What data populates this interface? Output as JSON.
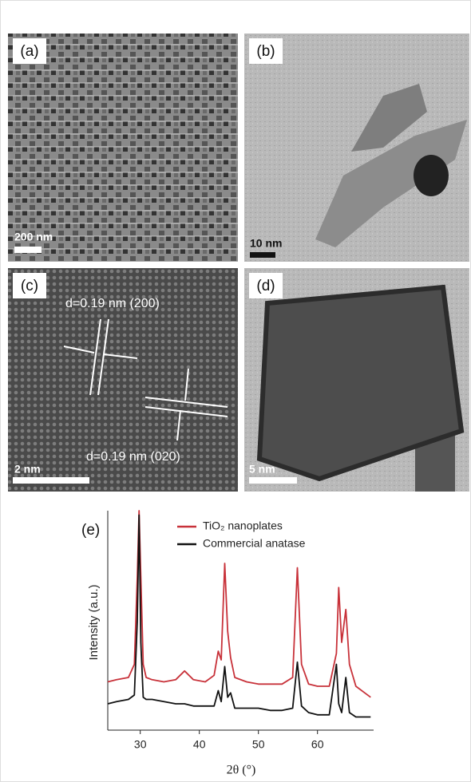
{
  "panels": [
    {
      "label": "(a)",
      "scale_bar": "200 nm"
    },
    {
      "label": "(b)",
      "scale_bar": "10 nm"
    },
    {
      "label": "(c)",
      "scale_bar": "2 nm",
      "annotations": [
        "d=0.19 nm (200)",
        "d=0.19 nm (020)"
      ]
    },
    {
      "label": "(d)",
      "scale_bar": "5 nm"
    }
  ],
  "chart_data": {
    "type": "line",
    "panel_label": "(e)",
    "x_label": "2θ (°)",
    "y_label": "Intensity (a.u.)",
    "x": [
      24.5,
      26,
      28,
      29,
      29.5,
      29.8,
      30.1,
      30.5,
      31,
      32,
      34,
      36,
      37.5,
      39,
      41,
      42.5,
      43.2,
      43.7,
      44.3,
      44.8,
      45.3,
      46,
      48,
      50,
      52,
      54,
      55.8,
      56.6,
      57.3,
      58.5,
      60,
      62,
      63.2,
      63.6,
      64.1,
      64.8,
      65.4,
      66.5,
      68,
      69
    ],
    "series": [
      {
        "name": "TiO₂ nanoplates",
        "color": "#c8323a",
        "values": [
          22,
          23,
          24,
          30,
          70,
          100,
          70,
          30,
          24,
          23,
          22,
          23,
          27,
          23,
          22,
          25,
          36,
          32,
          76,
          45,
          33,
          24,
          22,
          21,
          21,
          21,
          24,
          74,
          30,
          21,
          20,
          20,
          35,
          65,
          40,
          55,
          30,
          20,
          17,
          15
        ]
      },
      {
        "name": "Commercial anatase",
        "color": "#111111",
        "values": [
          12,
          13,
          14,
          16,
          50,
          98,
          40,
          15,
          14,
          14,
          13,
          12,
          12,
          11,
          11,
          11,
          18,
          13,
          29,
          15,
          17,
          10,
          10,
          10,
          9,
          9,
          10,
          31,
          11,
          8,
          7,
          7,
          30,
          12,
          8,
          24,
          8,
          6,
          6,
          6
        ]
      }
    ],
    "xlim": [
      24.5,
      69.5
    ],
    "ylim": [
      0,
      100
    ],
    "xticks": [
      30,
      40,
      50,
      60
    ],
    "legend": "top-right"
  }
}
